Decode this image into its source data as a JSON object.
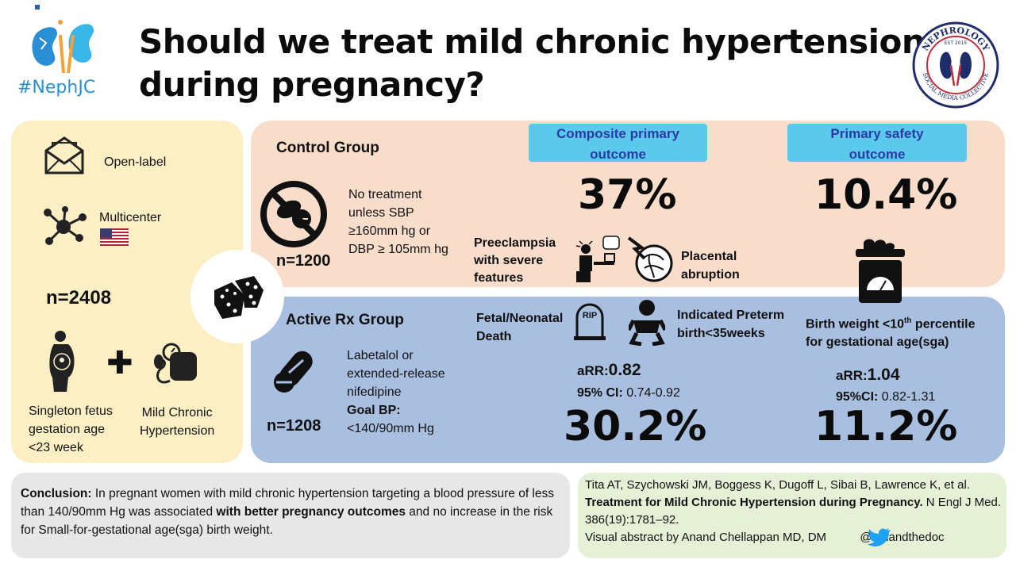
{
  "header": {
    "title_line1": "Should we treat mild chronic hypertension",
    "title_line2": "during pregnancy?",
    "hashtag": "#NephJC",
    "logo_text_top": "NEPHROLOGY",
    "logo_text_est": "EST 2015",
    "logo_text_bottom": "SOCIAL MEDIA COLLECTIVE"
  },
  "design": {
    "open_label": "Open-label",
    "multicenter": "Multicenter",
    "n_total": "n=2408",
    "population_line1": "Singleton fetus",
    "population_line2": "gestation age",
    "population_line3": "<23 week",
    "condition_line1": "Mild Chronic",
    "condition_line2": "Hypertension"
  },
  "control": {
    "title": "Control Group",
    "desc_line1": "No treatment",
    "desc_line2": "unless SBP",
    "desc_line3": "≥160mm hg  or",
    "desc_line4": "DBP ≥ 105mm hg",
    "n": "n=1200"
  },
  "active": {
    "title": "Active Rx Group",
    "desc_line1": "Labetalol or",
    "desc_line2": "extended-release",
    "desc_line3": "nifedipine",
    "goal_label": "Goal BP:",
    "goal_value": "<140/90mm Hg",
    "n": "n=1208"
  },
  "composite": {
    "header_line1": "Composite  primary",
    "header_line2": "outcome",
    "control_pct": "37%",
    "active_pct": "30.2%",
    "arr_label": "aRR:",
    "arr_value": "0.82",
    "ci_label": "95% CI:",
    "ci_value": " 0.74-0.92",
    "comp1_line1": "Preeclampsia",
    "comp1_line2": "with severe",
    "comp1_line3": "features",
    "comp2_line1": "Placental",
    "comp2_line2": "abruption",
    "comp3_line1": "Fetal/Neonatal",
    "comp3_line2": "Death",
    "comp4_line1": "Indicated Preterm",
    "comp4_line2": "birth<35weeks",
    "rip": "RIP"
  },
  "safety": {
    "header_line1": "Primary  safety",
    "header_line2": "outcome",
    "control_pct": "10.4%",
    "active_pct": "11.2%",
    "arr_label": "aRR:",
    "arr_value": "1.04",
    "ci_label": "95%CI:",
    "ci_value": " 0.82-1.31",
    "item_line1_pre": "Birth weight <10",
    "item_sup": "th",
    "item_line1_post": " percentile",
    "item_line2": "for gestational age(sga)"
  },
  "conclusion": {
    "label": "Conclusion:",
    "text1": " In pregnant women with mild chronic hypertension targeting a blood pressure of less than 140/90mm Hg was associated ",
    "emph": "with better pregnancy outcomes",
    "text2": " and no increase in the risk for Small-for-gestational age(sga) birth weight."
  },
  "reference": {
    "authors": "Tita AT, Szychowski JM, Boggess K, Dugoff L, Sibai B, Lawrence K, et al.",
    "title": "Treatment for Mild Chronic Hypertension during Pregnancy.",
    "journal": " N Engl J Med. 386(19):1781–92.",
    "credit": "Visual abstract by Anand Chellappan MD, DM",
    "handle": "@ anandthedoc"
  },
  "colors": {
    "left_panel": "#fdefc4",
    "control_panel": "#f8ddcb",
    "active_panel": "#a9bfe0",
    "header_box": "#5bc9ec",
    "header_text": "#2b3aa6",
    "twitter": "#1da1f2"
  }
}
